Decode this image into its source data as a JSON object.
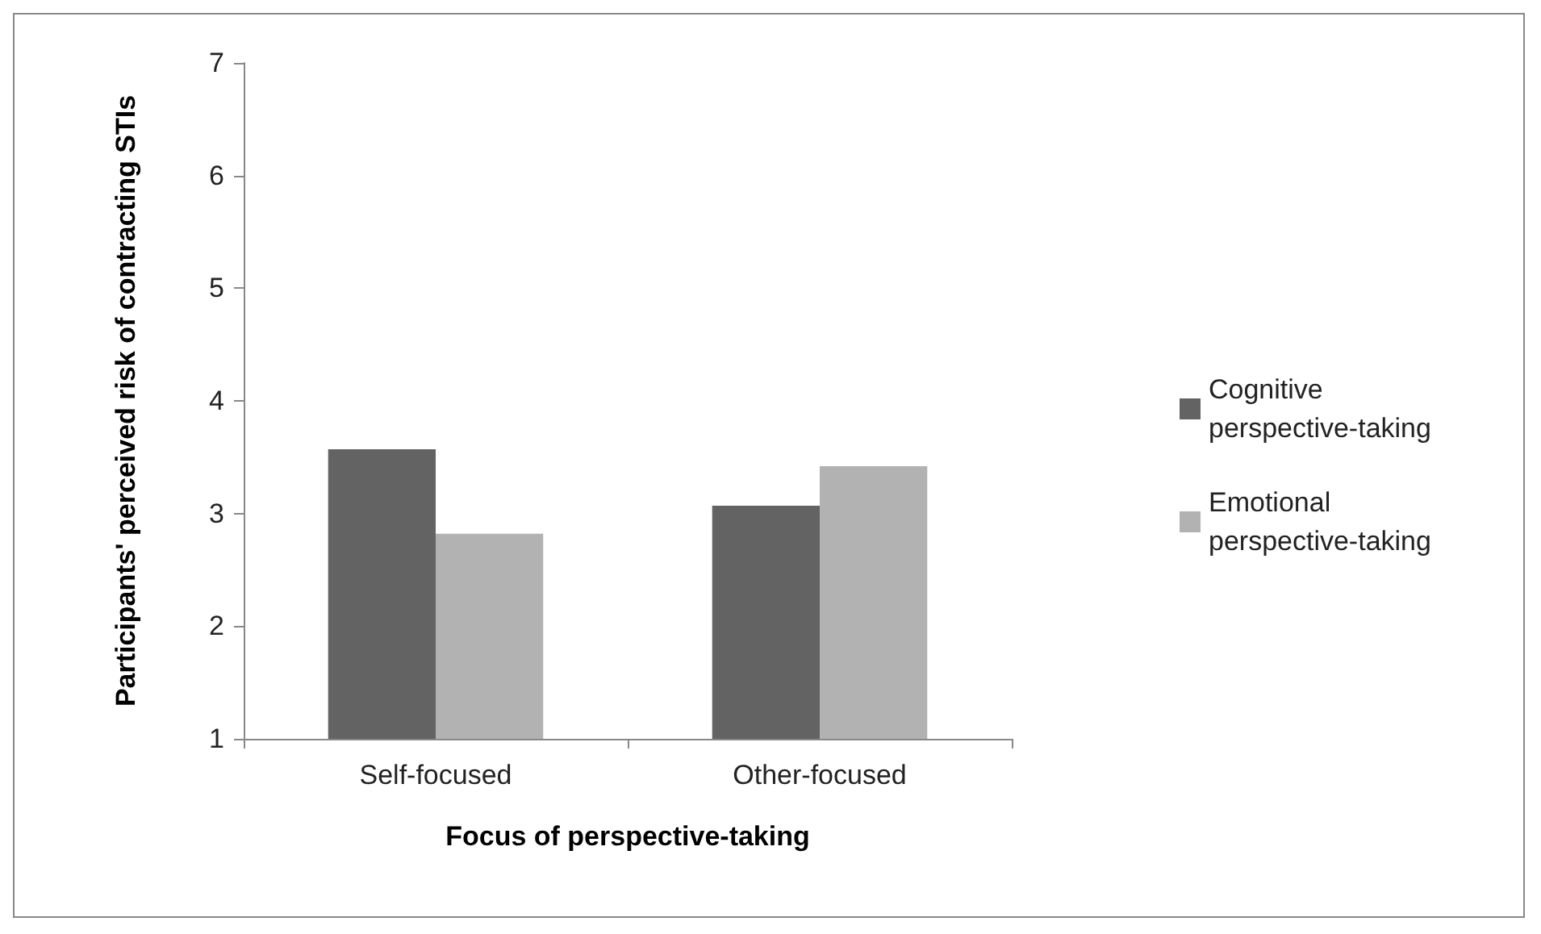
{
  "chart_data": {
    "type": "bar",
    "xlabel": "Focus of perspective-taking",
    "ylabel": "Participants' perceived risk of contracting STIs",
    "categories": [
      "Self-focused",
      "Other-focused"
    ],
    "series": [
      {
        "name": "Cognitive perspective-taking",
        "color": "#636363",
        "values": [
          3.57,
          3.07
        ]
      },
      {
        "name": "Emotional perspective-taking",
        "color": "#b2b2b2",
        "values": [
          2.82,
          3.42
        ]
      }
    ],
    "ylim": [
      1,
      7
    ],
    "yticks": [
      1,
      2,
      3,
      4,
      5,
      6,
      7
    ],
    "grid": false,
    "legend": "right"
  }
}
